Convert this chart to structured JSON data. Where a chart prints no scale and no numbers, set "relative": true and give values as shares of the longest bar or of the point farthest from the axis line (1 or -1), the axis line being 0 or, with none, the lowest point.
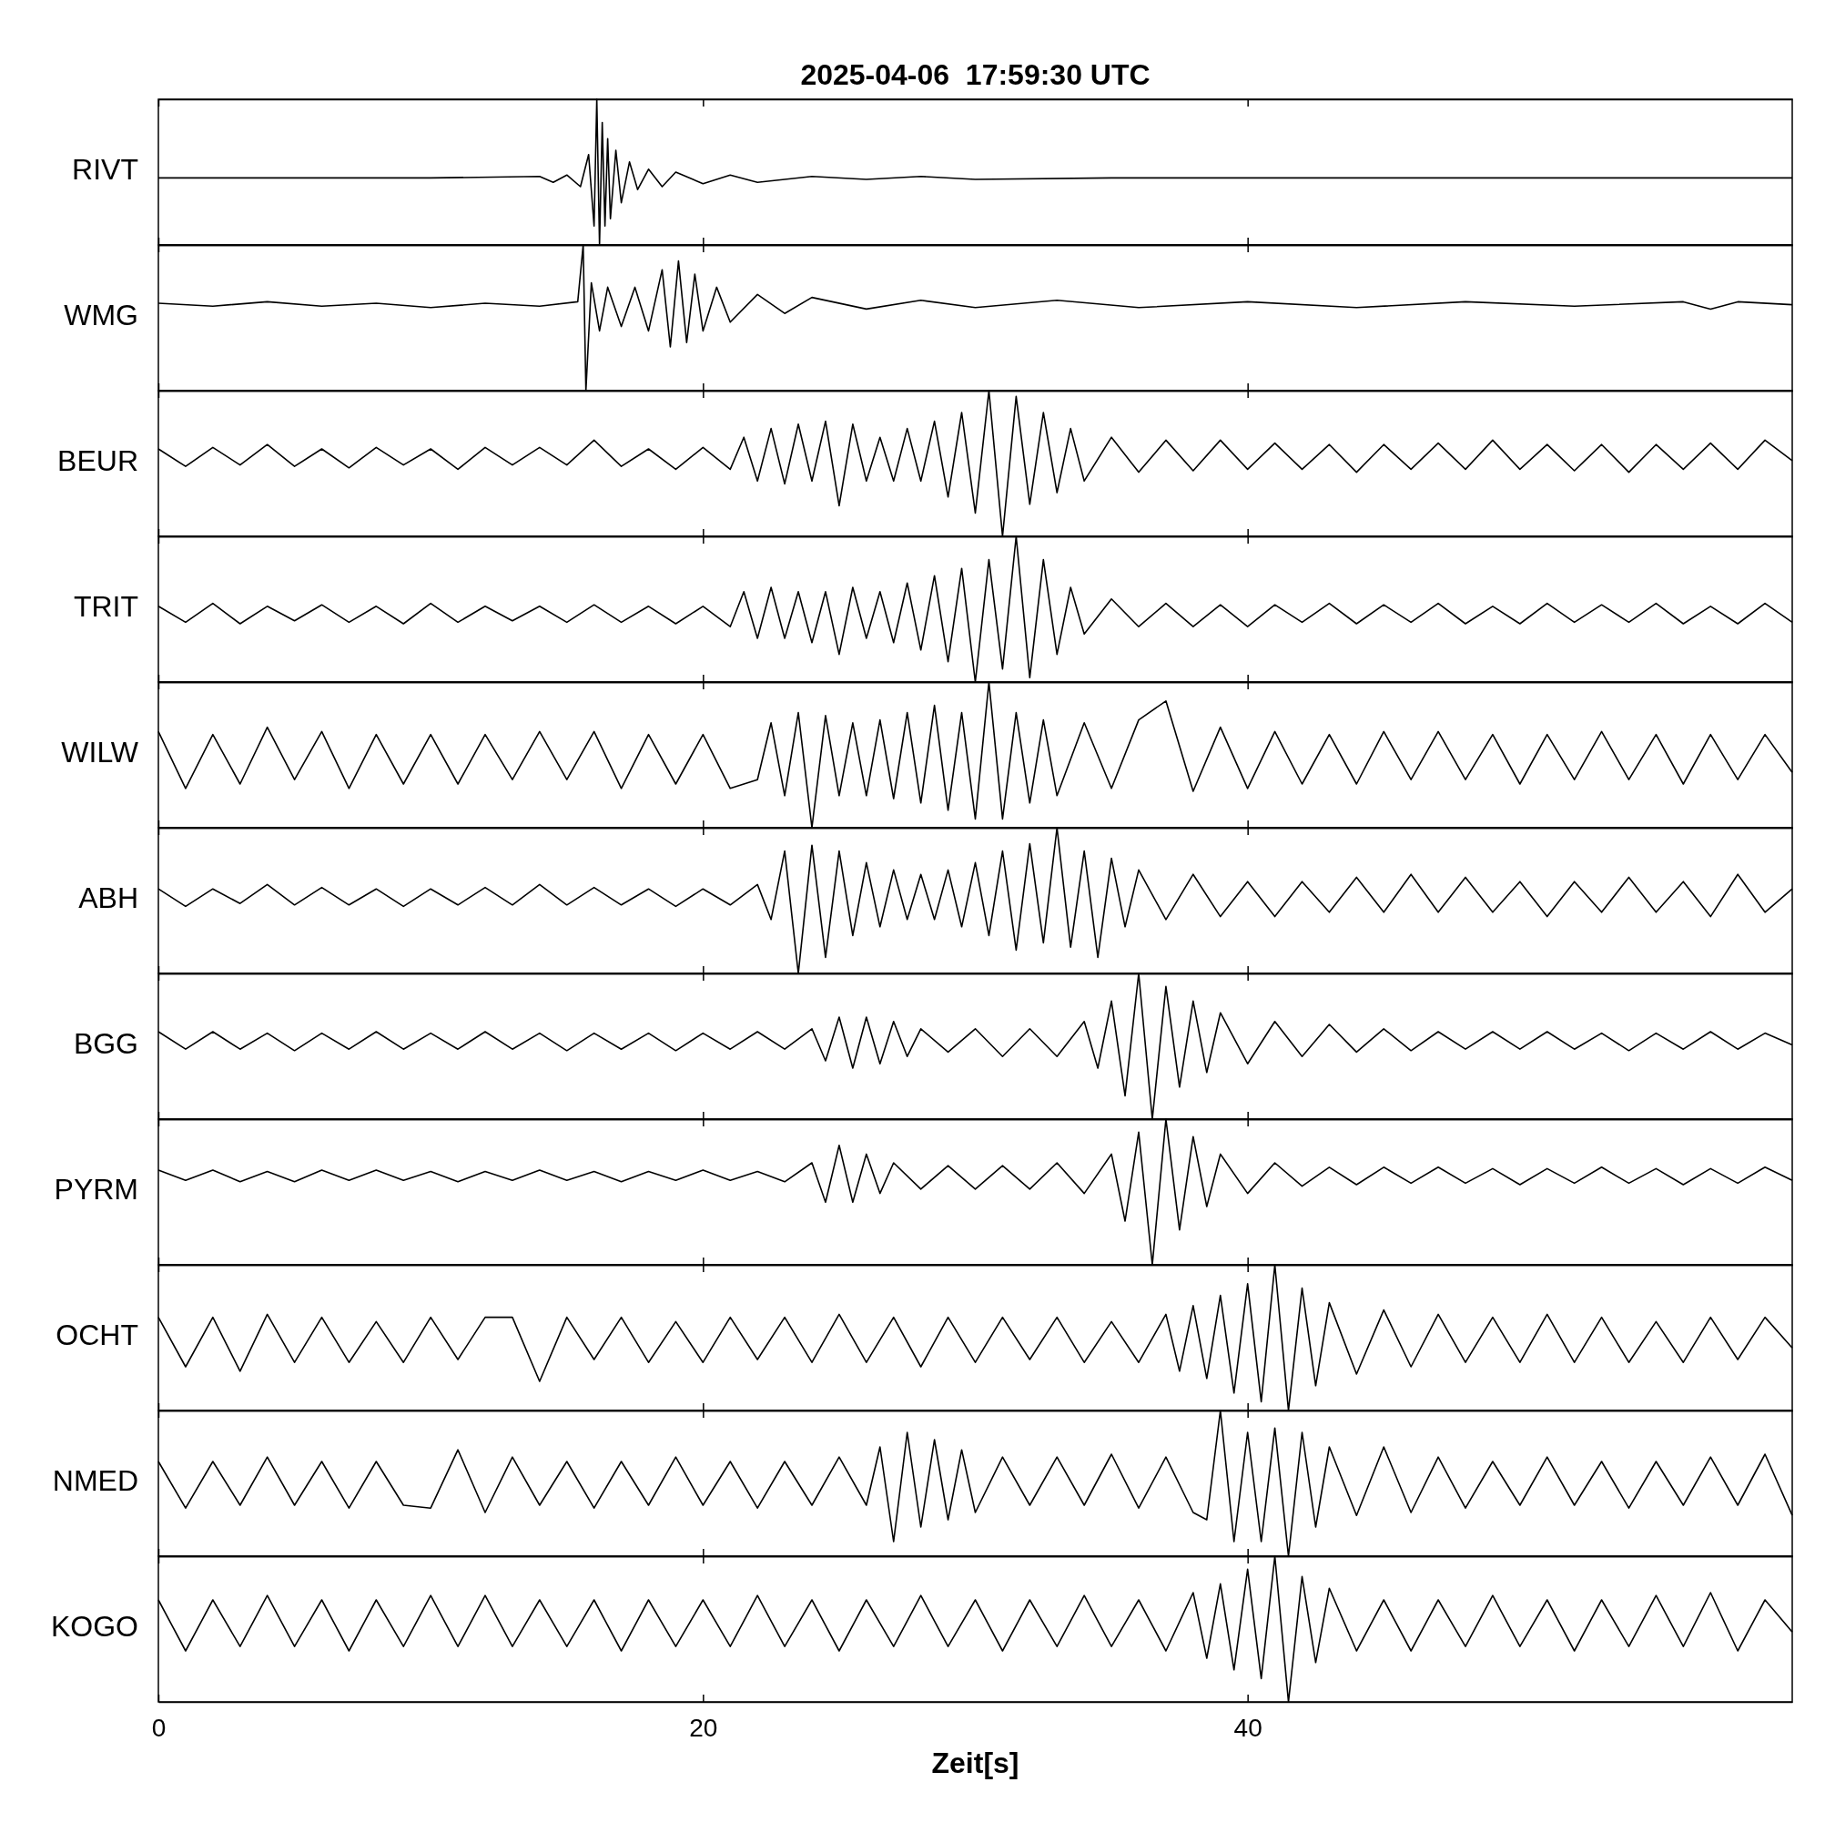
{
  "chart_data": [
    {
      "type": "line",
      "title": "2025-04-06  17:59:30 UTC",
      "ylabel": "RIVT",
      "relative": true,
      "tick_labels": false,
      "xlim": [
        0,
        60
      ],
      "xticks": [
        0,
        20,
        40
      ],
      "x": [
        0,
        10,
        14,
        14.5,
        15,
        15.5,
        15.8,
        16.0,
        16.1,
        16.2,
        16.3,
        16.4,
        16.5,
        16.6,
        16.8,
        17.0,
        17.3,
        17.6,
        18,
        18.5,
        19,
        20,
        21,
        22,
        24,
        26,
        28,
        30,
        35,
        45,
        60
      ],
      "series": [
        {
          "color": "#000000",
          "values": [
            0.46,
            0.46,
            0.47,
            0.43,
            0.48,
            0.4,
            0.62,
            0.13,
            1,
            0,
            0.84,
            0.13,
            0.73,
            0.18,
            0.65,
            0.29,
            0.57,
            0.38,
            0.52,
            0.4,
            0.5,
            0.42,
            0.48,
            0.43,
            0.47,
            0.45,
            0.47,
            0.45,
            0.46,
            0.46,
            0.46
          ]
        }
      ]
    },
    {
      "type": "line",
      "ylabel": "WMG",
      "relative": true,
      "tick_labels": false,
      "xlim": [
        0,
        60
      ],
      "xticks": [
        0,
        20,
        40
      ],
      "x": [
        0,
        2,
        4,
        6,
        8,
        10,
        12,
        14,
        15.4,
        15.6,
        15.7,
        15.9,
        16.2,
        16.5,
        17,
        17.5,
        18,
        18.5,
        18.8,
        19.1,
        19.4,
        19.7,
        20,
        20.5,
        21,
        22,
        23,
        24,
        26,
        28,
        30,
        33,
        36,
        40,
        44,
        48,
        52,
        56,
        57,
        58,
        60
      ],
      "series": [
        {
          "color": "#000000",
          "values": [
            0.6,
            0.58,
            0.61,
            0.58,
            0.6,
            0.57,
            0.6,
            0.58,
            0.61,
            1,
            0,
            0.74,
            0.41,
            0.71,
            0.44,
            0.71,
            0.41,
            0.83,
            0.3,
            0.89,
            0.33,
            0.8,
            0.41,
            0.71,
            0.47,
            0.66,
            0.53,
            0.64,
            0.56,
            0.62,
            0.57,
            0.62,
            0.57,
            0.61,
            0.57,
            0.61,
            0.58,
            0.61,
            0.56,
            0.61,
            0.59
          ]
        }
      ]
    },
    {
      "type": "line",
      "ylabel": "BEUR",
      "relative": true,
      "tick_labels": false,
      "xlim": [
        0,
        60
      ],
      "xticks": [
        0,
        20,
        40
      ],
      "x": [
        0,
        1,
        2,
        3,
        4,
        5,
        6,
        7,
        8,
        9,
        10,
        11,
        12,
        13,
        14,
        15,
        16,
        17,
        18,
        19,
        20,
        21,
        21.5,
        22,
        22.5,
        23,
        23.5,
        24,
        24.5,
        25,
        25.5,
        26,
        26.5,
        27,
        27.5,
        28,
        28.5,
        29,
        29.5,
        30,
        30.5,
        31,
        31.5,
        32,
        32.5,
        33,
        33.5,
        34,
        35,
        36,
        37,
        38,
        39,
        40,
        41,
        42,
        43,
        44,
        45,
        46,
        47,
        48,
        49,
        50,
        51,
        52,
        53,
        54,
        55,
        56,
        57,
        58,
        59,
        60
      ],
      "series": [
        {
          "color": "#000000",
          "values": [
            0.6,
            0.48,
            0.61,
            0.49,
            0.63,
            0.48,
            0.6,
            0.47,
            0.61,
            0.49,
            0.6,
            0.46,
            0.61,
            0.49,
            0.61,
            0.49,
            0.66,
            0.48,
            0.6,
            0.46,
            0.61,
            0.46,
            0.68,
            0.38,
            0.74,
            0.36,
            0.77,
            0.38,
            0.79,
            0.21,
            0.77,
            0.38,
            0.68,
            0.38,
            0.74,
            0.38,
            0.79,
            0.27,
            0.85,
            0.16,
            1,
            0,
            0.96,
            0.22,
            0.85,
            0.3,
            0.74,
            0.38,
            0.68,
            0.44,
            0.66,
            0.45,
            0.66,
            0.46,
            0.64,
            0.46,
            0.63,
            0.44,
            0.63,
            0.46,
            0.64,
            0.46,
            0.66,
            0.46,
            0.63,
            0.45,
            0.63,
            0.44,
            0.63,
            0.46,
            0.64,
            0.46,
            0.66,
            0.52
          ]
        }
      ]
    },
    {
      "type": "line",
      "ylabel": "TRIT",
      "relative": true,
      "tick_labels": false,
      "xlim": [
        0,
        60
      ],
      "xticks": [
        0,
        20,
        40
      ],
      "x": [
        0,
        1,
        2,
        3,
        4,
        5,
        6,
        7,
        8,
        9,
        10,
        11,
        12,
        13,
        14,
        15,
        16,
        17,
        18,
        19,
        20,
        21,
        21.5,
        22,
        22.5,
        23,
        23.5,
        24,
        24.5,
        25,
        25.5,
        26,
        26.5,
        27,
        27.5,
        28,
        28.5,
        29,
        29.5,
        30,
        30.5,
        31,
        31.5,
        32,
        32.5,
        33,
        33.5,
        34,
        35,
        36,
        37,
        38,
        39,
        40,
        41,
        42,
        43,
        44,
        45,
        46,
        47,
        48,
        49,
        50,
        51,
        52,
        53,
        54,
        55,
        56,
        57,
        58,
        59,
        60
      ],
      "series": [
        {
          "color": "#000000",
          "values": [
            0.52,
            0.41,
            0.54,
            0.4,
            0.52,
            0.42,
            0.53,
            0.41,
            0.52,
            0.4,
            0.54,
            0.41,
            0.52,
            0.42,
            0.52,
            0.41,
            0.53,
            0.41,
            0.52,
            0.4,
            0.52,
            0.38,
            0.62,
            0.3,
            0.65,
            0.3,
            0.62,
            0.27,
            0.62,
            0.19,
            0.65,
            0.3,
            0.62,
            0.27,
            0.68,
            0.22,
            0.73,
            0.14,
            0.78,
            0,
            0.84,
            0.09,
            1,
            0.03,
            0.84,
            0.19,
            0.65,
            0.33,
            0.57,
            0.38,
            0.54,
            0.38,
            0.53,
            0.38,
            0.53,
            0.41,
            0.54,
            0.4,
            0.53,
            0.41,
            0.54,
            0.4,
            0.52,
            0.4,
            0.54,
            0.41,
            0.53,
            0.41,
            0.54,
            0.4,
            0.52,
            0.4,
            0.54,
            0.41
          ]
        }
      ]
    },
    {
      "type": "line",
      "ylabel": "WILW",
      "relative": true,
      "tick_labels": false,
      "xlim": [
        0,
        60
      ],
      "xticks": [
        0,
        20,
        40
      ],
      "x": [
        0,
        1,
        2,
        3,
        4,
        5,
        6,
        7,
        8,
        9,
        10,
        11,
        12,
        13,
        14,
        15,
        16,
        17,
        18,
        19,
        20,
        21,
        22,
        22.5,
        23,
        23.5,
        24,
        24.5,
        25,
        25.5,
        26,
        26.5,
        27,
        27.5,
        28,
        28.5,
        29,
        29.5,
        30,
        30.5,
        31,
        31.5,
        32,
        32.5,
        33,
        34,
        35,
        36,
        37,
        38,
        39,
        40,
        41,
        42,
        43,
        44,
        45,
        46,
        47,
        48,
        49,
        50,
        51,
        52,
        53,
        54,
        55,
        56,
        57,
        58,
        59,
        60
      ],
      "series": [
        {
          "color": "#000000",
          "values": [
            0.66,
            0.27,
            0.64,
            0.3,
            0.69,
            0.33,
            0.66,
            0.27,
            0.64,
            0.3,
            0.64,
            0.3,
            0.64,
            0.33,
            0.66,
            0.33,
            0.66,
            0.27,
            0.64,
            0.3,
            0.64,
            0.27,
            0.33,
            0.72,
            0.22,
            0.79,
            0,
            0.77,
            0.22,
            0.72,
            0.22,
            0.74,
            0.2,
            0.79,
            0.17,
            0.84,
            0.12,
            0.79,
            0.06,
            1,
            0.06,
            0.79,
            0.17,
            0.74,
            0.22,
            0.72,
            0.27,
            0.74,
            0.87,
            0.25,
            0.69,
            0.27,
            0.66,
            0.3,
            0.64,
            0.3,
            0.66,
            0.33,
            0.66,
            0.33,
            0.64,
            0.3,
            0.64,
            0.33,
            0.66,
            0.33,
            0.64,
            0.3,
            0.64,
            0.33,
            0.64,
            0.38
          ]
        }
      ]
    },
    {
      "type": "line",
      "ylabel": "ABH",
      "relative": true,
      "tick_labels": false,
      "xlim": [
        0,
        60
      ],
      "xticks": [
        0,
        20,
        40
      ],
      "x": [
        0,
        1,
        2,
        3,
        4,
        5,
        6,
        7,
        8,
        9,
        10,
        11,
        12,
        13,
        14,
        15,
        16,
        17,
        18,
        19,
        20,
        21,
        22,
        22.5,
        23,
        23.5,
        24,
        24.5,
        25,
        25.5,
        26,
        26.5,
        27,
        27.5,
        28,
        28.5,
        29,
        29.5,
        30,
        30.5,
        31,
        31.5,
        32,
        32.5,
        33,
        33.5,
        34,
        34.5,
        35,
        35.5,
        36,
        37,
        38,
        39,
        40,
        41,
        42,
        43,
        44,
        45,
        46,
        47,
        48,
        49,
        50,
        51,
        52,
        53,
        54,
        55,
        56,
        57,
        58,
        59,
        60
      ],
      "series": [
        {
          "color": "#000000",
          "values": [
            0.58,
            0.46,
            0.58,
            0.48,
            0.61,
            0.47,
            0.59,
            0.47,
            0.58,
            0.46,
            0.58,
            0.47,
            0.59,
            0.47,
            0.61,
            0.47,
            0.59,
            0.47,
            0.58,
            0.46,
            0.58,
            0.47,
            0.61,
            0.37,
            0.84,
            0,
            0.88,
            0.11,
            0.84,
            0.26,
            0.76,
            0.32,
            0.71,
            0.37,
            0.68,
            0.37,
            0.71,
            0.32,
            0.76,
            0.26,
            0.84,
            0.16,
            0.89,
            0.21,
            1,
            0.18,
            0.84,
            0.11,
            0.79,
            0.32,
            0.71,
            0.37,
            0.68,
            0.39,
            0.63,
            0.39,
            0.63,
            0.42,
            0.66,
            0.42,
            0.68,
            0.42,
            0.66,
            0.42,
            0.63,
            0.39,
            0.63,
            0.42,
            0.66,
            0.42,
            0.63,
            0.39,
            0.68,
            0.42,
            0.58
          ]
        }
      ]
    },
    {
      "type": "line",
      "ylabel": "BGG",
      "relative": true,
      "tick_labels": false,
      "xlim": [
        0,
        60
      ],
      "xticks": [
        0,
        20,
        40
      ],
      "x": [
        0,
        1,
        2,
        3,
        4,
        5,
        6,
        7,
        8,
        9,
        10,
        11,
        12,
        13,
        14,
        15,
        16,
        17,
        18,
        19,
        20,
        21,
        22,
        23,
        24,
        24.5,
        25,
        25.5,
        26,
        26.5,
        27,
        27.5,
        28,
        29,
        30,
        31,
        32,
        33,
        34,
        34.5,
        35,
        35.5,
        36,
        36.5,
        37,
        37.5,
        38,
        38.5,
        39,
        40,
        41,
        42,
        43,
        44,
        45,
        46,
        47,
        48,
        49,
        50,
        51,
        52,
        53,
        54,
        55,
        56,
        57,
        58,
        59,
        60
      ],
      "series": [
        {
          "color": "#000000",
          "values": [
            0.6,
            0.48,
            0.6,
            0.48,
            0.59,
            0.47,
            0.59,
            0.48,
            0.6,
            0.48,
            0.59,
            0.48,
            0.6,
            0.48,
            0.59,
            0.47,
            0.59,
            0.48,
            0.59,
            0.47,
            0.59,
            0.48,
            0.6,
            0.48,
            0.62,
            0.4,
            0.7,
            0.35,
            0.7,
            0.38,
            0.67,
            0.43,
            0.62,
            0.46,
            0.62,
            0.43,
            0.62,
            0.43,
            0.67,
            0.35,
            0.81,
            0.16,
            1,
            0,
            0.91,
            0.22,
            0.81,
            0.32,
            0.73,
            0.38,
            0.67,
            0.43,
            0.65,
            0.46,
            0.62,
            0.47,
            0.6,
            0.48,
            0.6,
            0.48,
            0.6,
            0.48,
            0.59,
            0.47,
            0.59,
            0.48,
            0.6,
            0.48,
            0.59,
            0.51
          ]
        }
      ]
    },
    {
      "type": "line",
      "ylabel": "PYRM",
      "relative": true,
      "tick_labels": false,
      "xlim": [
        0,
        60
      ],
      "xticks": [
        0,
        20,
        40
      ],
      "x": [
        0,
        1,
        2,
        3,
        4,
        5,
        6,
        7,
        8,
        9,
        10,
        11,
        12,
        13,
        14,
        15,
        16,
        17,
        18,
        19,
        20,
        21,
        22,
        23,
        24,
        24.5,
        25,
        25.5,
        26,
        26.5,
        27,
        28,
        29,
        30,
        31,
        32,
        33,
        34,
        35,
        35.5,
        36,
        36.5,
        37,
        37.5,
        38,
        38.5,
        39,
        40,
        41,
        42,
        43,
        44,
        45,
        46,
        47,
        48,
        49,
        50,
        51,
        52,
        53,
        54,
        55,
        56,
        57,
        58,
        59,
        60
      ],
      "series": [
        {
          "color": "#000000",
          "values": [
            0.65,
            0.58,
            0.65,
            0.57,
            0.64,
            0.57,
            0.65,
            0.58,
            0.65,
            0.58,
            0.64,
            0.57,
            0.64,
            0.58,
            0.65,
            0.58,
            0.64,
            0.57,
            0.64,
            0.58,
            0.65,
            0.58,
            0.64,
            0.57,
            0.7,
            0.43,
            0.82,
            0.43,
            0.76,
            0.49,
            0.7,
            0.52,
            0.68,
            0.52,
            0.68,
            0.52,
            0.7,
            0.49,
            0.76,
            0.3,
            0.91,
            0,
            1,
            0.24,
            0.88,
            0.4,
            0.76,
            0.49,
            0.7,
            0.54,
            0.67,
            0.55,
            0.67,
            0.56,
            0.67,
            0.56,
            0.66,
            0.55,
            0.66,
            0.56,
            0.67,
            0.56,
            0.66,
            0.55,
            0.66,
            0.56,
            0.67,
            0.58
          ]
        }
      ]
    },
    {
      "type": "line",
      "ylabel": "OCHT",
      "relative": true,
      "tick_labels": false,
      "xlim": [
        0,
        60
      ],
      "xticks": [
        0,
        20,
        40
      ],
      "x": [
        0,
        1,
        2,
        3,
        4,
        5,
        6,
        7,
        8,
        9,
        10,
        11,
        12,
        13,
        14,
        15,
        16,
        17,
        18,
        19,
        20,
        21,
        22,
        23,
        24,
        25,
        26,
        27,
        28,
        29,
        30,
        31,
        32,
        33,
        34,
        35,
        36,
        37,
        37.5,
        38,
        38.5,
        39,
        39.5,
        40,
        40.5,
        41,
        41.5,
        42,
        42.5,
        43,
        44,
        45,
        46,
        47,
        48,
        49,
        50,
        51,
        52,
        53,
        54,
        55,
        56,
        57,
        58,
        59,
        60
      ],
      "series": [
        {
          "color": "#000000",
          "values": [
            0.64,
            0.3,
            0.64,
            0.27,
            0.66,
            0.33,
            0.64,
            0.33,
            0.61,
            0.33,
            0.64,
            0.35,
            0.64,
            0.64,
            0.2,
            0.64,
            0.35,
            0.64,
            0.33,
            0.61,
            0.33,
            0.64,
            0.35,
            0.64,
            0.33,
            0.66,
            0.33,
            0.64,
            0.3,
            0.64,
            0.33,
            0.64,
            0.35,
            0.64,
            0.33,
            0.61,
            0.33,
            0.66,
            0.27,
            0.72,
            0.22,
            0.79,
            0.12,
            0.87,
            0.06,
            1,
            0,
            0.84,
            0.17,
            0.74,
            0.25,
            0.69,
            0.3,
            0.66,
            0.33,
            0.64,
            0.33,
            0.66,
            0.33,
            0.64,
            0.33,
            0.61,
            0.33,
            0.64,
            0.35,
            0.64,
            0.43
          ]
        }
      ]
    },
    {
      "type": "line",
      "ylabel": "NMED",
      "relative": true,
      "tick_labels": false,
      "xlim": [
        0,
        60
      ],
      "xticks": [
        0,
        20,
        40
      ],
      "x": [
        0,
        1,
        2,
        3,
        4,
        5,
        6,
        7,
        8,
        9,
        10,
        11,
        12,
        13,
        14,
        15,
        16,
        17,
        18,
        19,
        20,
        21,
        22,
        23,
        24,
        25,
        26,
        26.5,
        27,
        27.5,
        28,
        28.5,
        29,
        29.5,
        30,
        31,
        32,
        33,
        34,
        35,
        36,
        37,
        38,
        38.5,
        39,
        39.5,
        40,
        40.5,
        41,
        41.5,
        42,
        42.5,
        43,
        44,
        45,
        46,
        47,
        48,
        49,
        50,
        51,
        52,
        53,
        54,
        55,
        56,
        57,
        58,
        59,
        60
      ],
      "series": [
        {
          "color": "#000000",
          "values": [
            0.65,
            0.33,
            0.65,
            0.35,
            0.68,
            0.35,
            0.65,
            0.33,
            0.65,
            0.35,
            0.33,
            0.73,
            0.3,
            0.68,
            0.35,
            0.65,
            0.33,
            0.65,
            0.35,
            0.68,
            0.35,
            0.65,
            0.33,
            0.65,
            0.35,
            0.68,
            0.35,
            0.75,
            0.1,
            0.85,
            0.2,
            0.8,
            0.25,
            0.73,
            0.3,
            0.68,
            0.35,
            0.68,
            0.35,
            0.7,
            0.33,
            0.68,
            0.3,
            0.25,
            1,
            0.1,
            0.85,
            0.1,
            0.88,
            0,
            0.85,
            0.2,
            0.75,
            0.28,
            0.75,
            0.3,
            0.68,
            0.33,
            0.65,
            0.35,
            0.68,
            0.35,
            0.65,
            0.33,
            0.65,
            0.35,
            0.68,
            0.35,
            0.7,
            0.28
          ]
        }
      ]
    },
    {
      "type": "line",
      "ylabel": "KOGO",
      "xlabel": "Zeit[s]",
      "relative": true,
      "tick_labels": "x",
      "xlim": [
        0,
        60
      ],
      "xticks": [
        0,
        20,
        40
      ],
      "x": [
        0,
        1,
        2,
        3,
        4,
        5,
        6,
        7,
        8,
        9,
        10,
        11,
        12,
        13,
        14,
        15,
        16,
        17,
        18,
        19,
        20,
        21,
        22,
        23,
        24,
        25,
        26,
        27,
        28,
        29,
        30,
        31,
        32,
        33,
        34,
        35,
        36,
        37,
        38,
        38.5,
        39,
        39.5,
        40,
        40.5,
        41,
        41.5,
        42,
        42.5,
        43,
        44,
        45,
        46,
        47,
        48,
        49,
        50,
        51,
        52,
        53,
        54,
        55,
        56,
        57,
        58,
        59,
        60
      ],
      "series": [
        {
          "color": "#000000",
          "values": [
            0.7,
            0.35,
            0.7,
            0.38,
            0.73,
            0.38,
            0.7,
            0.35,
            0.7,
            0.38,
            0.73,
            0.38,
            0.73,
            0.38,
            0.7,
            0.38,
            0.7,
            0.35,
            0.7,
            0.38,
            0.7,
            0.38,
            0.73,
            0.38,
            0.7,
            0.35,
            0.7,
            0.38,
            0.73,
            0.38,
            0.7,
            0.35,
            0.7,
            0.38,
            0.73,
            0.38,
            0.7,
            0.35,
            0.75,
            0.3,
            0.81,
            0.22,
            0.91,
            0.16,
            1,
            0,
            0.86,
            0.27,
            0.78,
            0.35,
            0.7,
            0.35,
            0.7,
            0.38,
            0.73,
            0.38,
            0.7,
            0.35,
            0.7,
            0.38,
            0.73,
            0.38,
            0.75,
            0.35,
            0.7,
            0.48
          ]
        }
      ]
    }
  ]
}
